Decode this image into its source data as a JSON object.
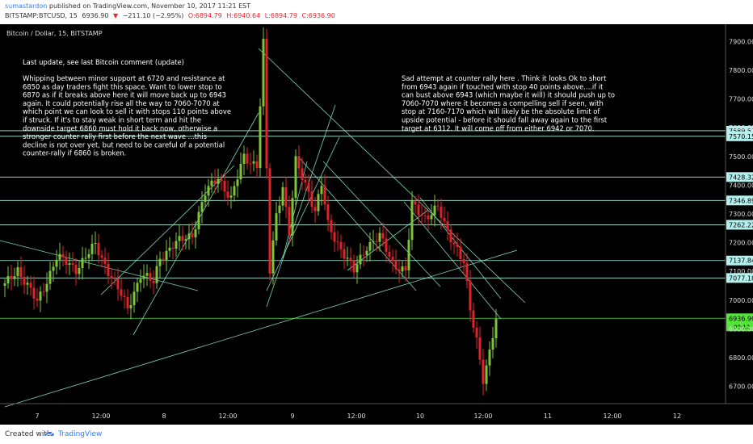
{
  "header": {
    "author": "sumastardon",
    "published": "published on TradingView.com, November 10, 2017 11:21 EST",
    "symbol": "BITSTAMP:BTCUSD, 15",
    "last": "6936.90",
    "arrow": "▼",
    "change": "−211.10 (−2.95%)",
    "o": "O:6894.79",
    "h": "H:6940.64",
    "l": "L:6894.79",
    "c": "C:6936.90"
  },
  "footer": {
    "created": "Created with",
    "brand": "TradingView"
  },
  "colors": {
    "background": "#000000",
    "up": "#7ec43a",
    "down": "#e0232b",
    "trendline": "#7fd4b0",
    "hline": "#a8f0e0",
    "axis_text": "#dddddd",
    "price_label": "#b3f0ee",
    "current_label": "#56e53c",
    "annotation_text": "#ffffff"
  },
  "chart_data": {
    "type": "candlestick",
    "title": "Bitcoin / Dollar, 15, BITSTAMP",
    "x_ticks": [
      "7",
      "12:00",
      "8",
      "12:00",
      "9",
      "12:00",
      "10",
      "12:00",
      "11",
      "12:00",
      "12"
    ],
    "y_ticks": [
      7900,
      7800,
      7700,
      7600,
      7500,
      7400,
      7300,
      7200,
      7100,
      7000,
      6900,
      6800,
      6700
    ],
    "ylim": [
      6640,
      7960
    ],
    "horizontal_levels": [
      "7589.52",
      "7570.15",
      "7428.32",
      "7346.89",
      "7262.22",
      "7137.84",
      "7077.18"
    ],
    "current_price": "6936.90",
    "current_sub": "08:12",
    "ohlc_anchor_path": [
      [
        0,
        7050
      ],
      [
        4,
        7110
      ],
      [
        10,
        6990
      ],
      [
        16,
        7150
      ],
      [
        22,
        7110
      ],
      [
        28,
        7190
      ],
      [
        34,
        7060
      ],
      [
        38,
        6970
      ],
      [
        42,
        7090
      ],
      [
        46,
        7060
      ],
      [
        48,
        7150
      ],
      [
        52,
        7190
      ],
      [
        58,
        7230
      ],
      [
        62,
        7370
      ],
      [
        66,
        7430
      ],
      [
        70,
        7350
      ],
      [
        74,
        7500
      ],
      [
        78,
        7470
      ],
      [
        80,
        7890
      ],
      [
        81,
        7450
      ],
      [
        82,
        7100
      ],
      [
        84,
        7300
      ],
      [
        86,
        7400
      ],
      [
        88,
        7230
      ],
      [
        90,
        7480
      ],
      [
        94,
        7380
      ],
      [
        96,
        7310
      ],
      [
        98,
        7400
      ],
      [
        100,
        7260
      ],
      [
        104,
        7180
      ],
      [
        108,
        7100
      ],
      [
        112,
        7190
      ],
      [
        116,
        7220
      ],
      [
        120,
        7130
      ],
      [
        124,
        7100
      ],
      [
        126,
        7330
      ],
      [
        130,
        7290
      ],
      [
        134,
        7320
      ],
      [
        136,
        7260
      ],
      [
        140,
        7180
      ],
      [
        142,
        7130
      ],
      [
        144,
        6960
      ],
      [
        146,
        6860
      ],
      [
        148,
        6730
      ],
      [
        150,
        6820
      ],
      [
        152,
        6930
      ]
    ],
    "annotations": [
      {
        "lines": [
          "Last update, see last Bitcoin comment (update)"
        ]
      },
      {
        "lines": [
          "Whipping between minor support at 6720 and resistance at",
          "6850 as day traders fight this space. Want to lower stop to",
          "6870 as if it breaks above here it will move back up to 6943",
          "again. It could potentially rise all the way to 7060-7070 at",
          "which point we can look to sell it with stops 110 points above",
          "if struck. If it's to stay weak in short term and hit the",
          "downside target 6860 must hold it back now, otherwise a",
          "stronger counter rally first before the next wave ...this",
          "decline is not over yet, but need to be careful of a potential",
          "counter-rally if 6860 is broken."
        ]
      },
      {
        "lines": [
          "Sad attempt at counter rally here . Think it looks Ok to short",
          "from 6943 again if touched with stop 40 points above....if it",
          "can bust above 6943 (which maybe it will) it should push up to",
          " 7060-7070 where it becomes a compelling sell if seen, with",
          "stop at 7160-7170 which will likely be the absolute limit of",
          "upside potential  - before it should fall away again to the first",
          "target at 6312. It will come off from either 6942 or 7070."
        ]
      }
    ]
  }
}
